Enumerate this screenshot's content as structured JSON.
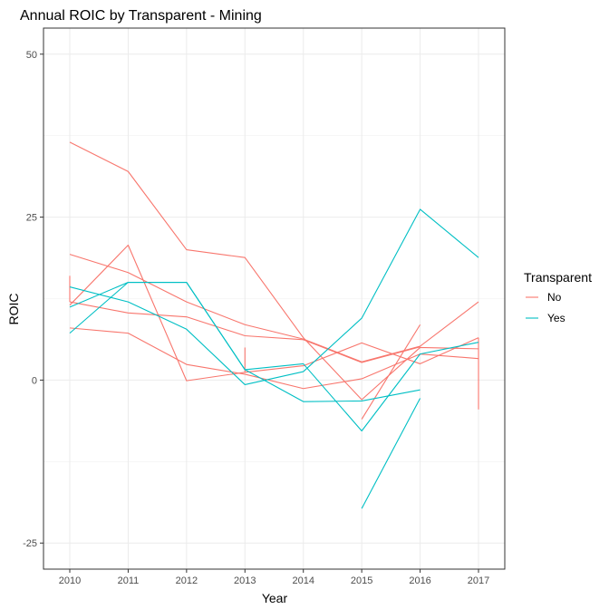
{
  "chart_data": {
    "type": "line",
    "title": "Annual ROIC by Transparent - Mining",
    "xlabel": "Year",
    "ylabel": "ROIC",
    "x_ticks": [
      "2010",
      "2011",
      "2012",
      "2013",
      "2014",
      "2015",
      "2016",
      "2017"
    ],
    "y_ticks": [
      -25,
      0,
      25,
      50
    ],
    "xlim": [
      2009.55,
      2017.45
    ],
    "ylim": [
      -29,
      54
    ],
    "grid": true,
    "legend": {
      "title": "Transparent",
      "position": "right",
      "entries": [
        {
          "label": "No",
          "color": "#F8766D"
        },
        {
          "label": "Yes",
          "color": "#00BFC4"
        }
      ]
    },
    "series": [
      {
        "group": "No",
        "color": "#F8766D",
        "x": [
          2010,
          2011,
          2012,
          2013,
          2014,
          2015,
          2016,
          2017
        ],
        "y": [
          36.5,
          32.0,
          20.0,
          18.8,
          6.5,
          -3.0,
          5.0,
          4.8
        ]
      },
      {
        "group": "No",
        "color": "#F8766D",
        "x": [
          2010,
          2011,
          2012,
          2013,
          2014,
          2015,
          2016,
          2017
        ],
        "y": [
          19.3,
          16.5,
          12.0,
          8.5,
          6.3,
          2.8,
          5.2,
          12.0
        ]
      },
      {
        "group": "No",
        "color": "#F8766D",
        "x": [
          2010,
          2011,
          2012,
          2013,
          2014,
          2015,
          2016
        ],
        "y": [
          12.0,
          10.3,
          9.7,
          6.8,
          6.2,
          2.7,
          5.1
        ]
      },
      {
        "group": "No",
        "color": "#F8766D",
        "x": [
          2010,
          2011,
          2012,
          2013,
          2014,
          2015,
          2016,
          2017
        ],
        "y": [
          11.5,
          20.7,
          -0.1,
          1.2,
          2.2,
          5.7,
          2.5,
          6.5
        ]
      },
      {
        "group": "No",
        "color": "#F8766D",
        "x": [
          2010,
          2011,
          2012,
          2013,
          2014,
          2015,
          2016,
          2017
        ],
        "y": [
          8.0,
          7.2,
          2.4,
          0.9,
          -1.3,
          0.2,
          4.0,
          3.3
        ]
      },
      {
        "group": "No",
        "color": "#F8766D",
        "x": [
          2015,
          2016
        ],
        "y": [
          -6.0,
          8.5
        ]
      },
      {
        "group": "No",
        "color": "#F8766D",
        "x": [
          2010,
          2010
        ],
        "y": [
          16.0,
          12.0
        ]
      },
      {
        "group": "No",
        "color": "#F8766D",
        "x": [
          2013,
          2013
        ],
        "y": [
          5.0,
          1.2
        ]
      },
      {
        "group": "No",
        "color": "#F8766D",
        "x": [
          2017,
          2017
        ],
        "y": [
          6.5,
          -4.5
        ]
      },
      {
        "group": "Yes",
        "color": "#00BFC4",
        "x": [
          2010,
          2011,
          2012,
          2013,
          2014,
          2015,
          2016,
          2017
        ],
        "y": [
          14.3,
          12.0,
          7.8,
          -0.7,
          1.3,
          9.5,
          26.2,
          18.8
        ]
      },
      {
        "group": "Yes",
        "color": "#00BFC4",
        "x": [
          2010,
          2011,
          2012,
          2013,
          2014,
          2015,
          2016,
          2017
        ],
        "y": [
          7.2,
          15.0,
          15.0,
          1.6,
          2.5,
          -7.8,
          4.0,
          5.8
        ]
      },
      {
        "group": "Yes",
        "color": "#00BFC4",
        "x": [
          2010,
          2011,
          2012,
          2013,
          2014,
          2015,
          2016
        ],
        "y": [
          11.2,
          15.0,
          15.0,
          1.6,
          -3.3,
          -3.2,
          -1.5
        ]
      },
      {
        "group": "Yes",
        "color": "#00BFC4",
        "x": [
          2015,
          2016
        ],
        "y": [
          -19.7,
          -2.8
        ]
      }
    ]
  }
}
